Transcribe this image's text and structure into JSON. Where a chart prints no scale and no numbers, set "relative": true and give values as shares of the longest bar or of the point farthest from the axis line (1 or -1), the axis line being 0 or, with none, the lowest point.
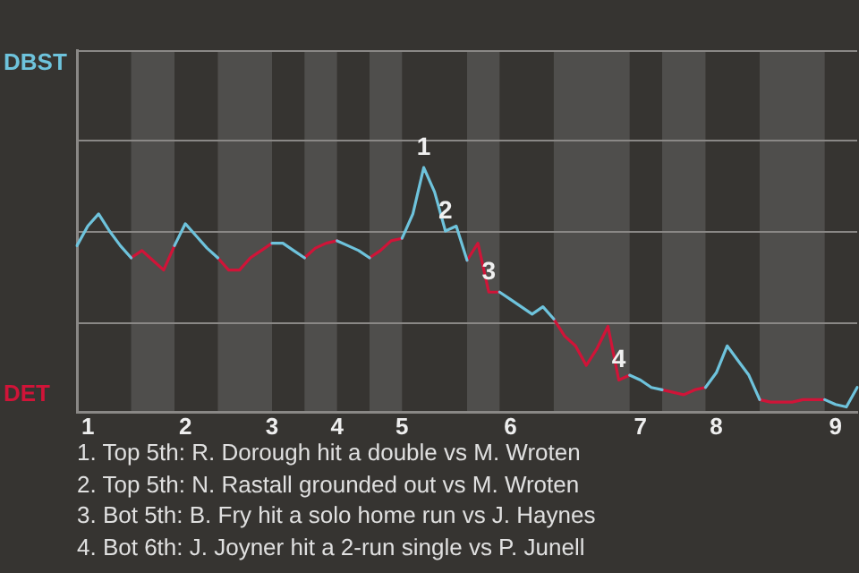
{
  "chart_data": {
    "type": "line",
    "categories": [
      null,
      "1",
      null,
      null,
      null,
      null,
      null,
      null,
      null,
      null,
      "2",
      null,
      null,
      null,
      null,
      null,
      null,
      null,
      "3",
      null,
      null,
      null,
      null,
      null,
      "4",
      null,
      null,
      null,
      null,
      null,
      "5",
      null,
      null,
      null,
      null,
      null,
      null,
      null,
      null,
      null,
      "6",
      null,
      null,
      null,
      null,
      null,
      null,
      null,
      null,
      null,
      null,
      null,
      "7",
      null,
      null,
      null,
      null,
      null,
      null,
      "8",
      null,
      null,
      null,
      null,
      null,
      null,
      null,
      null,
      null,
      null,
      "9",
      null,
      null
    ],
    "relative": true,
    "series": [
      {
        "name": "DBST",
        "color": "#6ec3dc",
        "values": [
          0.68,
          0.76,
          0.81,
          0.74,
          0.68,
          0.63,
          null,
          null,
          null,
          0.68,
          0.77,
          0.72,
          0.67,
          0.63,
          null,
          null,
          null,
          null,
          0.69,
          0.69,
          0.66,
          0.63,
          null,
          null,
          0.7,
          0.68,
          0.66,
          0.63,
          null,
          null,
          0.71,
          0.81,
          1,
          0.9,
          0.74,
          0.76,
          0.62,
          null,
          null,
          0.49,
          0.46,
          0.43,
          0.4,
          0.43,
          0.38,
          null,
          null,
          null,
          null,
          null,
          null,
          0.15,
          0.13,
          0.1,
          0.09,
          null,
          null,
          null,
          0.1,
          0.16,
          0.27,
          0.21,
          0.15,
          0.05,
          null,
          null,
          null,
          null,
          null,
          0.05,
          0.03,
          0.02,
          0.1
        ]
      },
      {
        "name": "DET",
        "color": "#d01438",
        "values": [
          null,
          null,
          null,
          null,
          null,
          0.63,
          0.66,
          0.62,
          0.58,
          0.68,
          null,
          null,
          null,
          0.63,
          0.58,
          0.58,
          0.63,
          0.66,
          0.69,
          null,
          null,
          0.63,
          0.67,
          0.69,
          0.7,
          null,
          null,
          0.63,
          0.66,
          0.7,
          0.71,
          null,
          null,
          null,
          null,
          null,
          0.62,
          0.69,
          0.49,
          0.49,
          null,
          null,
          null,
          null,
          0.38,
          0.31,
          0.27,
          0.19,
          0.26,
          0.35,
          0.13,
          0.15,
          null,
          null,
          0.09,
          0.08,
          0.07,
          0.09,
          0.1,
          null,
          null,
          null,
          null,
          0.05,
          0.04,
          0.04,
          0.04,
          0.05,
          0.05,
          0.05,
          null,
          null,
          null
        ]
      }
    ],
    "marker": "none",
    "ref_lines": [
      {
        "axis": "y",
        "value": 0.37,
        "color": "#8a8886"
      },
      {
        "axis": "y",
        "value": 0.74,
        "color": "#8a8886"
      },
      {
        "axis": "y",
        "value": 1.11,
        "color": "#8a8886"
      },
      {
        "axis": "y",
        "value": 1.48,
        "color": "#8a8886"
      }
    ],
    "annotations": [
      {
        "text": "1",
        "y": 1
      },
      {
        "text": "2",
        "y": 0.74
      },
      {
        "text": "3",
        "y": 0.49
      },
      {
        "text": "4",
        "y": 0.13
      },
      "1. Top 5th: R. Dorough hit a double vs M. Wroten",
      "2. Top 5th: N. Rastall grounded out vs M. Wroten",
      "3. Bot 5th: B. Fry hit a solo home run vs J. Haynes",
      "4. Bot 6th: J. Joyner hit a 2-run single vs P. Junell"
    ]
  }
}
